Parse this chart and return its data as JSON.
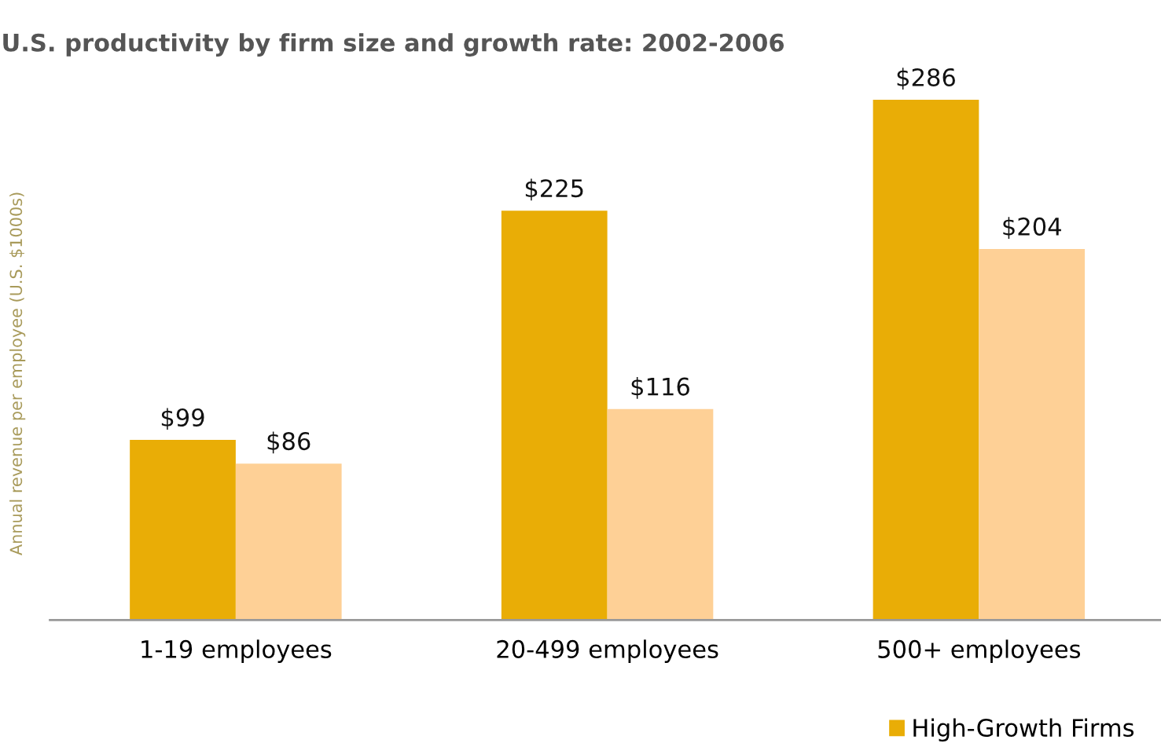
{
  "chart_data": {
    "type": "bar",
    "title": "U.S. productivity by firm size and growth rate: 2002-2006",
    "ylabel": "Annual revenue per employee (U.S. $1000s)",
    "categories": [
      "1-19 employees",
      "20-499 employees",
      "500+ employees"
    ],
    "series": [
      {
        "name": "High-Growth Firms",
        "color": "#e9ad06",
        "values": [
          99,
          225,
          286
        ],
        "value_labels": [
          "$99",
          "$225",
          "$286"
        ]
      },
      {
        "color": "#fed096",
        "values": [
          86,
          116,
          204
        ],
        "value_labels": [
          "$86",
          "$116",
          "$204"
        ]
      }
    ],
    "tick_labels": "x",
    "grid": false,
    "legend": "bottom right"
  }
}
